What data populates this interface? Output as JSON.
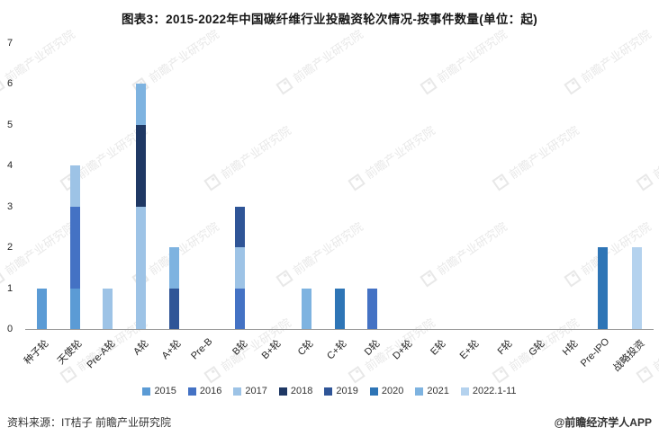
{
  "title": "图表3：2015-2022年中国碳纤维行业投融资轮次情况-按事件数量(单位：起)",
  "watermark": {
    "text": "前瞻产业研究院"
  },
  "footer": {
    "source": "资料来源：IT桔子 前瞻产业研究院",
    "credit": "@前瞻经济学人APP"
  },
  "chart_data": {
    "type": "bar",
    "stacked": true,
    "title": "图表3：2015-2022年中国碳纤维行业投融资轮次情况-按事件数量(单位：起)",
    "unit": "起",
    "xlabel": "",
    "ylabel": "",
    "ylim": [
      0,
      7
    ],
    "y_ticks": [
      0,
      1,
      2,
      3,
      4,
      5,
      6,
      7
    ],
    "grid": false,
    "legend_position": "bottom",
    "categories": [
      "种子轮",
      "天使轮",
      "Pre-A轮",
      "A轮",
      "A+轮",
      "Pre-B",
      "B轮",
      "B+轮",
      "C轮",
      "C+轮",
      "D轮",
      "D+轮",
      "E轮",
      "E+轮",
      "F轮",
      "G轮",
      "H轮",
      "Pre-IPO",
      "战略投资"
    ],
    "series": [
      {
        "name": "2015",
        "color": "#5B9BD5",
        "values": [
          1,
          1,
          0,
          0,
          0,
          0,
          0,
          0,
          0,
          0,
          0,
          0,
          0,
          0,
          0,
          0,
          0,
          0,
          0
        ]
      },
      {
        "name": "2016",
        "color": "#4472C4",
        "values": [
          0,
          2,
          0,
          0,
          0,
          0,
          1,
          0,
          0,
          0,
          1,
          0,
          0,
          0,
          0,
          0,
          0,
          0,
          0
        ]
      },
      {
        "name": "2017",
        "color": "#9DC3E6",
        "values": [
          0,
          1,
          1,
          3,
          0,
          0,
          1,
          0,
          0,
          0,
          0,
          0,
          0,
          0,
          0,
          0,
          0,
          0,
          0
        ]
      },
      {
        "name": "2018",
        "color": "#1F3864",
        "values": [
          0,
          0,
          0,
          2,
          0,
          0,
          0,
          0,
          0,
          0,
          0,
          0,
          0,
          0,
          0,
          0,
          0,
          0,
          0
        ]
      },
      {
        "name": "2019",
        "color": "#2F5597",
        "values": [
          0,
          0,
          0,
          0,
          1,
          0,
          1,
          0,
          0,
          0,
          0,
          0,
          0,
          0,
          0,
          0,
          0,
          0,
          0
        ]
      },
      {
        "name": "2020",
        "color": "#2E75B6",
        "values": [
          0,
          0,
          0,
          0,
          0,
          0,
          0,
          0,
          0,
          1,
          0,
          0,
          0,
          0,
          0,
          0,
          0,
          0,
          2
        ]
      },
      {
        "name": "2021",
        "color": "#7EB3E0",
        "values": [
          0,
          0,
          0,
          1,
          1,
          0,
          0,
          0,
          1,
          0,
          0,
          0,
          0,
          0,
          0,
          0,
          0,
          0,
          0
        ]
      },
      {
        "name": "2022.1-11",
        "color": "#B4D2EE",
        "values": [
          0,
          0,
          0,
          0,
          0,
          0,
          0,
          0,
          0,
          0,
          0,
          0,
          0,
          0,
          0,
          0,
          0,
          0,
          2
        ],
        "side": true
      }
    ]
  }
}
